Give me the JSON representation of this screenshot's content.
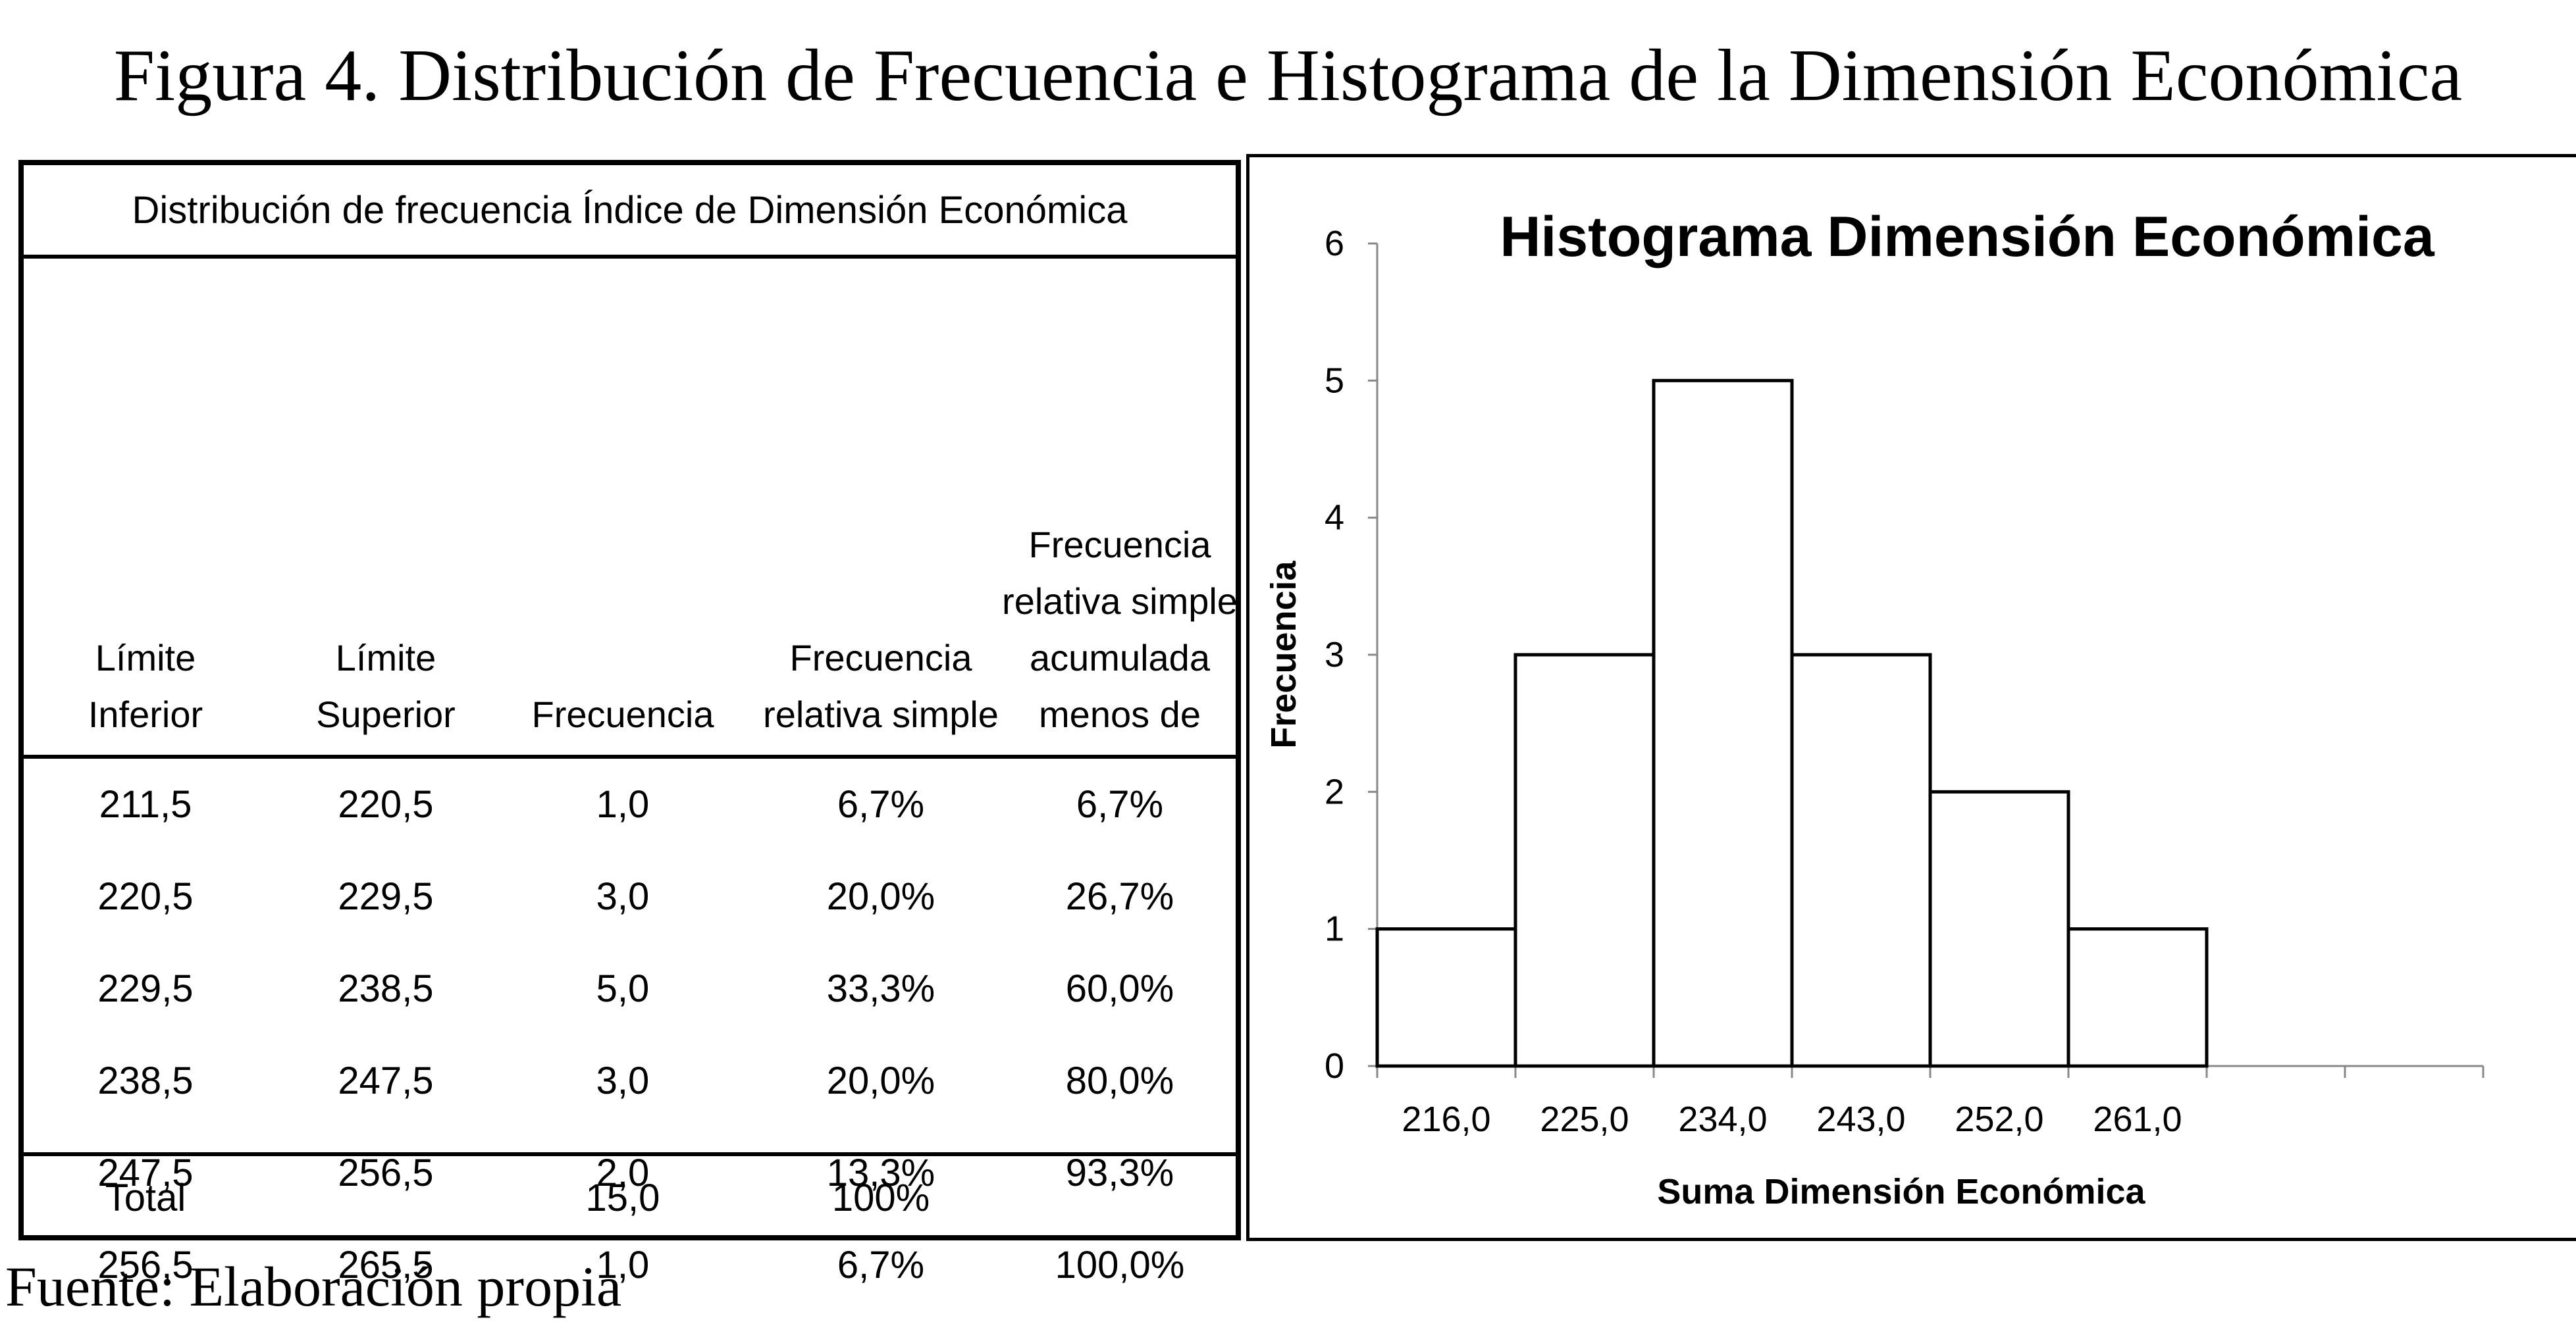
{
  "figure": {
    "title": "Figura 4. Distribución de Frecuencia e Histograma de la Dimensión Económica",
    "source": "Fuente: Elaboración propia"
  },
  "table": {
    "caption": "Distribución de frecuencia Índice de Dimensión Económica",
    "headers": [
      [
        "Límite",
        "Inferior"
      ],
      [
        "Límite",
        "Superior"
      ],
      [
        "Frecuencia"
      ],
      [
        "Frecuencia",
        "relativa simple"
      ],
      [
        "Frecuencia",
        "relativa simple",
        "acumulada",
        "menos de"
      ]
    ],
    "rows": [
      [
        "211,5",
        "220,5",
        "1,0",
        "6,7%",
        "6,7%"
      ],
      [
        "220,5",
        "229,5",
        "3,0",
        "20,0%",
        "26,7%"
      ],
      [
        "229,5",
        "238,5",
        "5,0",
        "33,3%",
        "60,0%"
      ],
      [
        "238,5",
        "247,5",
        "3,0",
        "20,0%",
        "80,0%"
      ],
      [
        "247,5",
        "256,5",
        "2,0",
        "13,3%",
        "93,3%"
      ],
      [
        "256,5",
        "265,5",
        "1,0",
        "6,7%",
        "100,0%"
      ]
    ],
    "total": [
      "Total",
      "",
      "15,0",
      "100%",
      ""
    ]
  },
  "chart_data": {
    "type": "bar",
    "title": "Histograma Dimensión Económica",
    "xlabel": "Suma Dimensión Económica",
    "ylabel": "Frecuencia",
    "categories": [
      "216,0",
      "225,0",
      "234,0",
      "243,0",
      "252,0",
      "261,0"
    ],
    "values": [
      1,
      3,
      5,
      3,
      2,
      1
    ],
    "ylim": [
      0,
      6
    ],
    "yticks": [
      "0",
      "1",
      "2",
      "3",
      "4",
      "5",
      "6"
    ],
    "empty_bins_after": 2,
    "grid": false,
    "legend": "none",
    "bar_fill": "#ffffff",
    "bar_stroke": "#000000"
  }
}
